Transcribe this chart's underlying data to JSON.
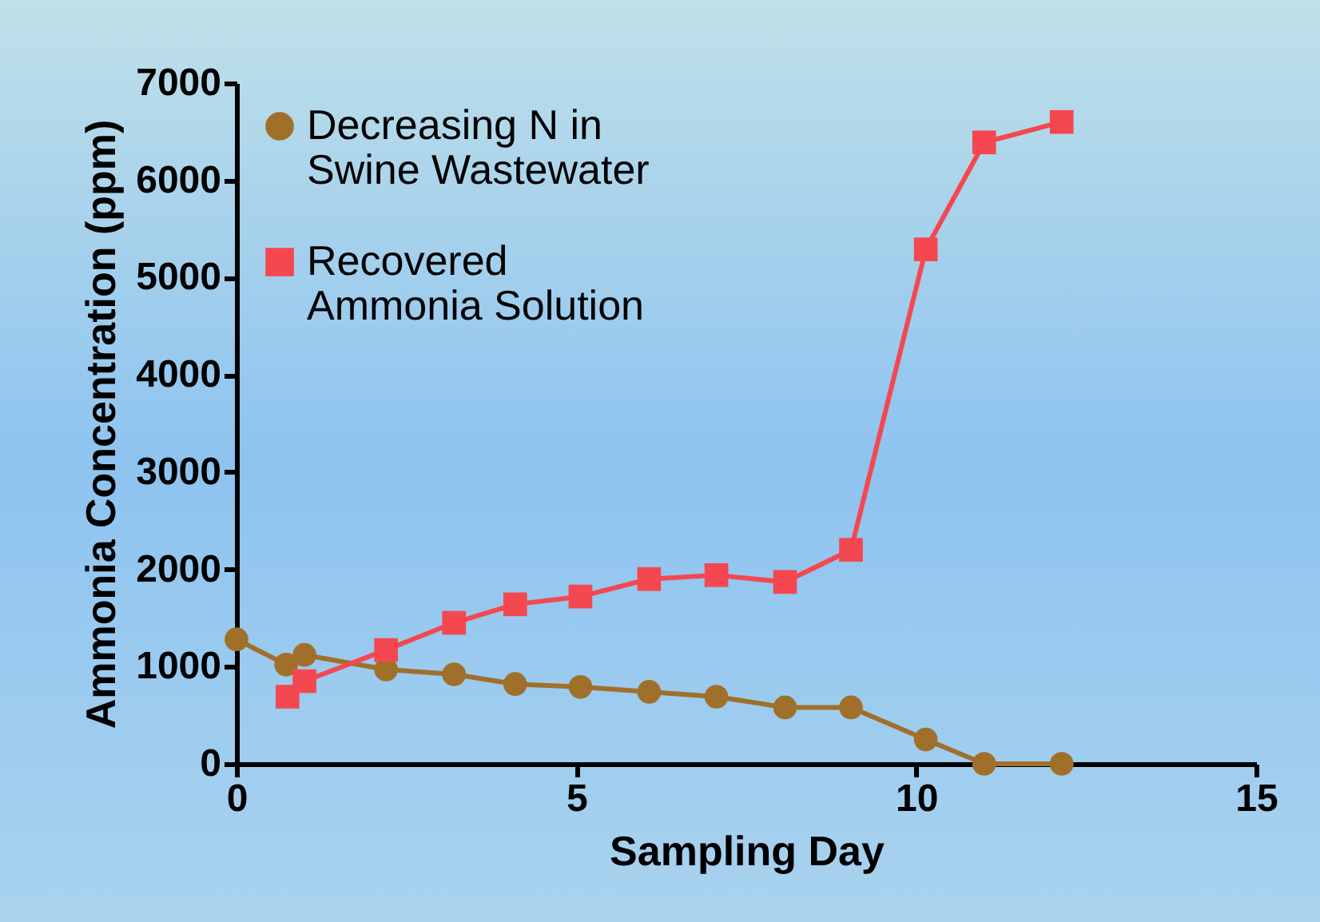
{
  "chart_data": {
    "type": "line",
    "xlabel": "Sampling Day",
    "ylabel": "Ammonia Concentration (ppm)",
    "xlim": [
      0,
      15
    ],
    "ylim": [
      0,
      7000
    ],
    "xticks": [
      0,
      5,
      10,
      15
    ],
    "yticks": [
      0,
      1000,
      2000,
      3000,
      4000,
      5000,
      6000,
      7000
    ],
    "grid": false,
    "legend": "top left",
    "series": [
      {
        "name": "Decreasing N in Swine Wastewater",
        "color": "#a0702a",
        "marker": "circle",
        "x": [
          0,
          0.73,
          1.0,
          2.2,
          3.2,
          4.1,
          5.06,
          6.07,
          7.06,
          8.07,
          9.04,
          10.14,
          11.0,
          12.14
        ],
        "values": [
          1280,
          1020,
          1120,
          970,
          920,
          820,
          790,
          740,
          690,
          580,
          580,
          250,
          0,
          0
        ]
      },
      {
        "name": "Recovered Ammonia Solution",
        "color": "#f5474f",
        "marker": "square",
        "x": [
          0.75,
          1.0,
          2.2,
          3.2,
          4.1,
          5.06,
          6.07,
          7.06,
          8.07,
          9.04,
          10.14,
          11.0,
          12.14
        ],
        "values": [
          690,
          850,
          1170,
          1450,
          1640,
          1720,
          1900,
          1940,
          1870,
          2200,
          5290,
          6390,
          6600
        ]
      }
    ]
  }
}
